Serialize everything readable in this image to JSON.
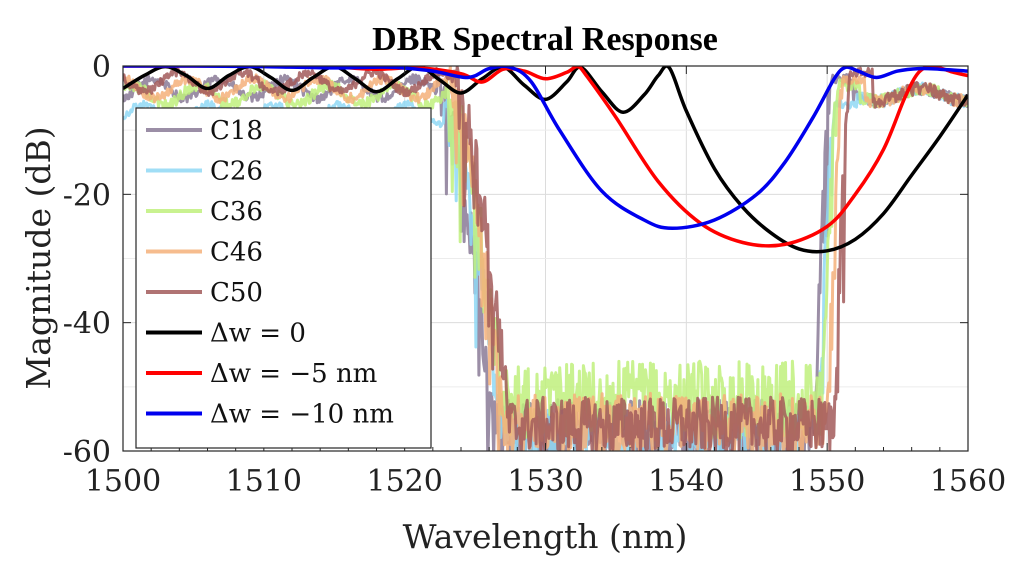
{
  "chart_data": {
    "type": "line",
    "title": "DBR Spectral Response",
    "xlabel": "Wavelength (nm)",
    "ylabel": "Magnitude (dB)",
    "xlim": [
      1500,
      1560
    ],
    "ylim": [
      -60,
      0
    ],
    "xticks": [
      1500,
      1510,
      1520,
      1530,
      1540,
      1550,
      1560
    ],
    "xtick_labels": [
      "1500",
      "1510",
      "1520",
      "1530",
      "1540",
      "1550",
      "1560"
    ],
    "yticks": [
      0,
      -20,
      -40,
      -60
    ],
    "ytick_labels": [
      "0",
      "-20",
      "-40",
      "-60"
    ],
    "grid": true,
    "legend_position": "left",
    "measured_series": [
      {
        "name": "C18",
        "color": "#8a7a97",
        "left_edge": 1526.3,
        "right_edge": 1550.3,
        "pass_level": -2,
        "stop_level": -57,
        "noise": 2.5
      },
      {
        "name": "C26",
        "color": "#8fd8f5",
        "left_edge": 1526.8,
        "right_edge": 1550.6,
        "pass_level": -6,
        "stop_level": -57,
        "noise": 2.0
      },
      {
        "name": "C36",
        "color": "#c0f07c",
        "left_edge": 1526.9,
        "right_edge": 1550.8,
        "pass_level": -3,
        "stop_level": -52,
        "noise": 3.0
      },
      {
        "name": "C46",
        "color": "#f4b07a",
        "left_edge": 1527.0,
        "right_edge": 1551.2,
        "pass_level": -2,
        "stop_level": -56,
        "noise": 2.5
      },
      {
        "name": "C50",
        "color": "#a25a5a",
        "left_edge": 1527.4,
        "right_edge": 1551.7,
        "pass_level": -1,
        "stop_level": -56,
        "noise": 2.2
      }
    ],
    "simulated_series": [
      {
        "name": "Δw = 0",
        "legend_label": "Δw = 0",
        "color": "#000000",
        "x": [
          1500,
          1501.5,
          1503,
          1504.5,
          1506,
          1507.5,
          1509,
          1510.5,
          1512,
          1513.5,
          1515,
          1516.5,
          1518,
          1519.5,
          1521,
          1522.5,
          1524,
          1525.5,
          1527,
          1528.5,
          1530,
          1531.5,
          1532.5,
          1534,
          1535.5,
          1537,
          1538,
          1538.8,
          1540,
          1542,
          1544,
          1546,
          1548,
          1550,
          1552,
          1554,
          1556,
          1558,
          1560
        ],
        "y": [
          -3.5,
          -1.5,
          -0.1,
          -1.5,
          -3.5,
          -1.5,
          -0.1,
          -1.8,
          -3.8,
          -1.8,
          -0.1,
          -2.0,
          -4.0,
          -2.0,
          -0.1,
          -2.2,
          -4.2,
          -2.0,
          -0.2,
          -3.0,
          -5.2,
          -2.5,
          -0.2,
          -4.0,
          -7.2,
          -4.5,
          -1.5,
          -0.3,
          -7.0,
          -16.0,
          -22.0,
          -26.0,
          -28.5,
          -28.8,
          -27.0,
          -23.0,
          -17.0,
          -11.0,
          -4.5
        ]
      },
      {
        "name": "Δw = −5 nm",
        "legend_label": "Δw = −5 nm",
        "color": "#ff0000",
        "x": [
          1500,
          1505,
          1510,
          1515,
          1518,
          1521,
          1524,
          1525.5,
          1527,
          1528.5,
          1530,
          1531.5,
          1532.3,
          1533,
          1535,
          1538,
          1541,
          1544,
          1547,
          1550,
          1552,
          1554,
          1555.5,
          1556.5,
          1557.5,
          1559,
          1560
        ],
        "y": [
          0,
          0,
          0,
          -0.2,
          -0.5,
          -0.3,
          -1.2,
          -2.5,
          -0.5,
          -0.8,
          -2.0,
          -1.0,
          -0.1,
          -1.8,
          -8.0,
          -18.0,
          -24.5,
          -27.5,
          -27.8,
          -25.0,
          -20.0,
          -13.0,
          -5.0,
          -1.0,
          -0.1,
          -1.0,
          -1.5
        ]
      },
      {
        "name": "Δw = −10 nm",
        "legend_label": "Δw = −10 nm",
        "color": "#0000ee",
        "x": [
          1500,
          1505,
          1510,
          1515,
          1519,
          1522,
          1524.5,
          1526,
          1527.5,
          1529,
          1531,
          1534,
          1537,
          1539,
          1542,
          1545,
          1547,
          1549,
          1550.5,
          1551.3,
          1552.2,
          1553.5,
          1555,
          1556.5,
          1558,
          1560
        ],
        "y": [
          0,
          0,
          -0.1,
          -0.3,
          -0.2,
          -0.8,
          -1.8,
          -0.4,
          -0.2,
          -2.5,
          -10.0,
          -19.5,
          -24.0,
          -25.3,
          -24.0,
          -20.0,
          -15.0,
          -8.0,
          -2.0,
          -0.2,
          -0.8,
          -1.8,
          -0.8,
          -0.4,
          -0.5,
          -0.8
        ]
      }
    ],
    "legend_entries": [
      "C18",
      "C26",
      "C36",
      "C46",
      "C50",
      "Δw = 0",
      "Δw = −5 nm",
      "Δw = −10 nm"
    ]
  }
}
